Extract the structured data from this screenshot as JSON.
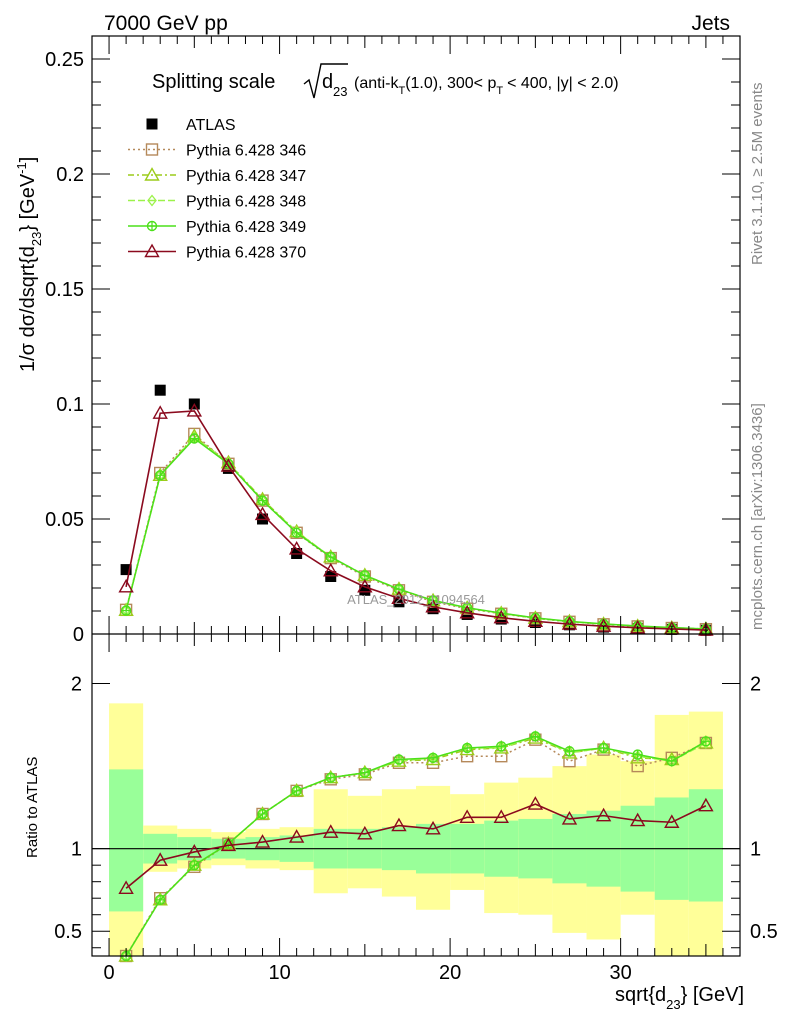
{
  "header": {
    "left": "7000 GeV pp",
    "right": "Jets"
  },
  "side_labels": {
    "rivet": "Rivet 3.1.10, ≥ 2.5M events",
    "mcplots": "mcplots.cern.ch [arXiv:1306.3436]"
  },
  "watermark": "ATLAS_2012_I1094564",
  "colors": {
    "data": "#000000",
    "p346": "#b5895a",
    "p347": "#9ccc1a",
    "p348": "#9cf24a",
    "p349": "#4ce01a",
    "p370": "#8b0a1e",
    "band_inner": "#99ff99",
    "band_outer": "#ffff99"
  },
  "chart_data": [
    {
      "type": "line",
      "title_main": "Splitting scale",
      "title_var": "d",
      "title_sub": "23",
      "title_rest_1": "(anti-k",
      "title_rest_sub": "T",
      "title_rest_2": "(1.0), 300< p",
      "title_rest_sub2": "T",
      "title_rest_3": "< 400, |y| < 2.0)",
      "ylabel": "1/σ dσ/dsqrt{d",
      "ylabel_sub": "23",
      "ylabel_end": "} [GeV",
      "ylabel_sup": "-1",
      "ylabel_close": "]",
      "xlim": [
        -1,
        37
      ],
      "ylim": [
        0,
        0.26
      ],
      "yticks": [
        0,
        0.05,
        0.1,
        0.15,
        0.2,
        0.25
      ],
      "ytick_labels": [
        "0",
        "0.05",
        "0.1",
        "0.15",
        "0.2",
        "0.25"
      ],
      "x": [
        1,
        3,
        5,
        7,
        9,
        11,
        13,
        15,
        17,
        19,
        21,
        23,
        25,
        27,
        29,
        31,
        33,
        35
      ],
      "series": [
        {
          "name": "ATLAS",
          "key": "data",
          "marker": "square-filled",
          "values": [
            0.028,
            0.106,
            0.1,
            0.072,
            0.05,
            0.035,
            0.025,
            0.019,
            0.014,
            0.011,
            0.0085,
            0.0065,
            0.005,
            0.004,
            0.003,
            0.0024,
            0.002,
            0.0016
          ]
        },
        {
          "name": "Pythia 6.428 346",
          "key": "p346",
          "marker": "square-open",
          "dash": "2,3",
          "values": [
            0.0105,
            0.07,
            0.087,
            0.074,
            0.058,
            0.044,
            0.033,
            0.025,
            0.019,
            0.014,
            0.011,
            0.0088,
            0.0068,
            0.0053,
            0.0042,
            0.0033,
            0.0026,
            0.0021
          ]
        },
        {
          "name": "Pythia 6.428 347",
          "key": "p347",
          "marker": "triangle-open",
          "dash": "6,3,2,3",
          "values": [
            0.0103,
            0.069,
            0.086,
            0.0745,
            0.0585,
            0.0445,
            0.0335,
            0.0255,
            0.0195,
            0.0145,
            0.0113,
            0.009,
            0.0069,
            0.0054,
            0.0043,
            0.0034,
            0.0027,
            0.0022
          ]
        },
        {
          "name": "Pythia 6.428 348",
          "key": "p348",
          "marker": "diamond-open",
          "dash": "7,3",
          "values": [
            0.0104,
            0.069,
            0.0855,
            0.0745,
            0.058,
            0.0445,
            0.0335,
            0.0255,
            0.0195,
            0.0145,
            0.0113,
            0.009,
            0.0069,
            0.0054,
            0.0043,
            0.0034,
            0.0027,
            0.0022
          ]
        },
        {
          "name": "Pythia 6.428 349",
          "key": "p349",
          "marker": "circle-cross",
          "dash": "",
          "values": [
            0.0102,
            0.069,
            0.085,
            0.074,
            0.058,
            0.044,
            0.0335,
            0.0255,
            0.0195,
            0.0146,
            0.0114,
            0.0091,
            0.007,
            0.0055,
            0.0044,
            0.0035,
            0.0028,
            0.0022
          ]
        },
        {
          "name": "Pythia 6.428 370",
          "key": "p370",
          "marker": "triangle-open",
          "dash": "",
          "values": [
            0.0205,
            0.096,
            0.097,
            0.073,
            0.052,
            0.037,
            0.0275,
            0.0205,
            0.0155,
            0.0118,
            0.0092,
            0.0071,
            0.0055,
            0.0043,
            0.0034,
            0.0027,
            0.0022,
            0.0017
          ]
        }
      ]
    },
    {
      "type": "line",
      "ylabel": "Ratio to ATLAS",
      "xlabel": "sqrt{d",
      "xlabel_sub": "23",
      "xlabel_end": "} [GeV]",
      "xlim": [
        -1,
        37
      ],
      "ylim": [
        0.35,
        2.3
      ],
      "xticks": [
        0,
        10,
        20,
        30
      ],
      "xtick_labels": [
        "0",
        "10",
        "20",
        "30"
      ],
      "yticks": [
        0.5,
        1,
        2
      ],
      "ytick_labels": [
        "0.5",
        "1",
        "2"
      ],
      "reference": 1,
      "bins": [
        [
          0,
          2
        ],
        [
          2,
          4
        ],
        [
          4,
          6
        ],
        [
          6,
          8
        ],
        [
          8,
          10
        ],
        [
          10,
          12
        ],
        [
          12,
          14
        ],
        [
          14,
          16
        ],
        [
          16,
          18
        ],
        [
          18,
          20
        ],
        [
          20,
          22
        ],
        [
          22,
          24
        ],
        [
          24,
          26
        ],
        [
          26,
          28
        ],
        [
          28,
          30
        ],
        [
          30,
          32
        ],
        [
          32,
          34
        ],
        [
          34,
          36
        ]
      ],
      "band_inner": [
        [
          0.62,
          1.48
        ],
        [
          0.91,
          1.09
        ],
        [
          0.93,
          1.07
        ],
        [
          0.94,
          1.06
        ],
        [
          0.93,
          1.07
        ],
        [
          0.92,
          1.08
        ],
        [
          0.88,
          1.12
        ],
        [
          0.88,
          1.12
        ],
        [
          0.87,
          1.13
        ],
        [
          0.85,
          1.15
        ],
        [
          0.85,
          1.15
        ],
        [
          0.83,
          1.17
        ],
        [
          0.82,
          1.18
        ],
        [
          0.79,
          1.21
        ],
        [
          0.77,
          1.23
        ],
        [
          0.74,
          1.26
        ],
        [
          0.69,
          1.31
        ],
        [
          0.68,
          1.36
        ]
      ],
      "band_outer": [
        [
          0.35,
          1.88
        ],
        [
          0.86,
          1.14
        ],
        [
          0.88,
          1.12
        ],
        [
          0.9,
          1.1
        ],
        [
          0.88,
          1.12
        ],
        [
          0.87,
          1.13
        ],
        [
          0.73,
          1.36
        ],
        [
          0.76,
          1.32
        ],
        [
          0.71,
          1.36
        ],
        [
          0.63,
          1.38
        ],
        [
          0.75,
          1.33
        ],
        [
          0.61,
          1.4
        ],
        [
          0.6,
          1.43
        ],
        [
          0.49,
          1.5
        ],
        [
          0.45,
          1.57
        ],
        [
          0.6,
          1.53
        ],
        [
          0.35,
          1.81
        ],
        [
          0.35,
          1.83
        ]
      ],
      "series": [
        {
          "name": "Pythia 6.428 346",
          "key": "p346",
          "marker": "square-open",
          "dash": "2,3",
          "values": [
            0.35,
            0.7,
            0.89,
            1.03,
            1.21,
            1.35,
            1.42,
            1.45,
            1.52,
            1.52,
            1.56,
            1.56,
            1.66,
            1.53,
            1.6,
            1.5,
            1.55,
            1.64
          ]
        },
        {
          "name": "Pythia 6.428 347",
          "key": "p347",
          "marker": "triangle-open",
          "dash": "6,3,2,3",
          "values": [
            0.35,
            0.69,
            0.9,
            1.03,
            1.21,
            1.35,
            1.43,
            1.46,
            1.53,
            1.54,
            1.6,
            1.61,
            1.67,
            1.58,
            1.61,
            1.55,
            1.54,
            1.64
          ]
        },
        {
          "name": "Pythia 6.428 348",
          "key": "p348",
          "marker": "diamond-open",
          "dash": "7,3",
          "values": [
            0.35,
            0.69,
            0.9,
            1.03,
            1.21,
            1.35,
            1.43,
            1.46,
            1.53,
            1.55,
            1.61,
            1.61,
            1.68,
            1.58,
            1.61,
            1.56,
            1.53,
            1.64
          ]
        },
        {
          "name": "Pythia 6.428 349",
          "key": "p349",
          "marker": "circle-cross",
          "dash": "",
          "values": [
            0.35,
            0.69,
            0.9,
            1.03,
            1.21,
            1.35,
            1.43,
            1.46,
            1.54,
            1.55,
            1.61,
            1.62,
            1.68,
            1.59,
            1.61,
            1.57,
            1.53,
            1.65
          ]
        },
        {
          "name": "Pythia 6.428 370",
          "key": "p370",
          "marker": "triangle-open",
          "dash": "",
          "values": [
            0.76,
            0.93,
            0.98,
            1.02,
            1.04,
            1.07,
            1.1,
            1.09,
            1.14,
            1.12,
            1.19,
            1.19,
            1.27,
            1.18,
            1.2,
            1.17,
            1.16,
            1.26
          ]
        }
      ]
    }
  ]
}
